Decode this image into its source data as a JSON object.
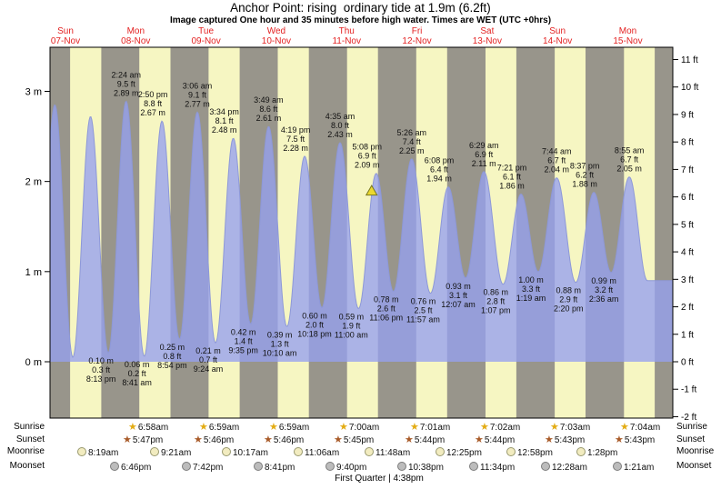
{
  "header": {
    "title": "Anchor Point: rising  ordinary tide at 1.9m (6.2ft)",
    "subtitle": "Image captured One hour and 35 minutes before high water. Times are WET (UTC +0hrs)"
  },
  "chart_data": {
    "type": "area",
    "title": "Anchor Point: rising ordinary tide at 1.9m (6.2ft)",
    "ylabel_left": "m",
    "ylabel_right": "ft",
    "y_axis_m": [
      0,
      1,
      2,
      3
    ],
    "y_axis_ft": [
      -2,
      -1,
      0,
      1,
      2,
      3,
      4,
      5,
      6,
      7,
      8,
      9,
      10,
      11
    ],
    "days": [
      {
        "name": "Sun",
        "date": "07-Nov"
      },
      {
        "name": "Mon",
        "date": "08-Nov"
      },
      {
        "name": "Tue",
        "date": "09-Nov"
      },
      {
        "name": "Wed",
        "date": "10-Nov"
      },
      {
        "name": "Thu",
        "date": "11-Nov"
      },
      {
        "name": "Fri",
        "date": "12-Nov"
      },
      {
        "name": "Sat",
        "date": "13-Nov"
      },
      {
        "name": "Sun",
        "date": "14-Nov"
      },
      {
        "name": "Mon",
        "date": "15-Nov"
      }
    ],
    "highs": [
      {
        "day": 1,
        "time": "2:24 am",
        "height_ft": 9.5,
        "height_m": 2.89
      },
      {
        "day": 1,
        "time": "2:50 pm",
        "height_ft": 8.8,
        "height_m": 2.67
      },
      {
        "day": 2,
        "time": "3:06 am",
        "height_ft": 9.1,
        "height_m": 2.77
      },
      {
        "day": 2,
        "time": "3:34 pm",
        "height_ft": 8.1,
        "height_m": 2.48
      },
      {
        "day": 3,
        "time": "3:49 am",
        "height_ft": 8.6,
        "height_m": 2.61
      },
      {
        "day": 3,
        "time": "4:19 pm",
        "height_ft": 7.5,
        "height_m": 2.28
      },
      {
        "day": 4,
        "time": "4:35 am",
        "height_ft": 8.0,
        "height_m": 2.43
      },
      {
        "day": 4,
        "time": "5:08 pm",
        "height_ft": 6.9,
        "height_m": 2.09
      },
      {
        "day": 5,
        "time": "5:26 am",
        "height_ft": 7.4,
        "height_m": 2.25
      },
      {
        "day": 5,
        "time": "6:08 pm",
        "height_ft": 6.4,
        "height_m": 1.94
      },
      {
        "day": 6,
        "time": "6:29 am",
        "height_ft": 6.9,
        "height_m": 2.11
      },
      {
        "day": 6,
        "time": "7:21 pm",
        "height_ft": 6.1,
        "height_m": 1.86
      },
      {
        "day": 7,
        "time": "7:44 am",
        "height_ft": 6.7,
        "height_m": 2.04
      },
      {
        "day": 7,
        "time": "8:37 pm",
        "height_ft": 6.2,
        "height_m": 1.88
      },
      {
        "day": 8,
        "time": "8:55 am",
        "height_ft": 6.7,
        "height_m": 2.05
      }
    ],
    "lows": [
      {
        "day": 0,
        "time": "8:13 pm",
        "height_ft": 0.3,
        "height_m": 0.1
      },
      {
        "day": 1,
        "time": "8:41 am",
        "height_ft": 0.2,
        "height_m": 0.06
      },
      {
        "day": 1,
        "time": "8:54 pm",
        "height_ft": 0.8,
        "height_m": 0.25
      },
      {
        "day": 2,
        "time": "9:24 am",
        "height_ft": 0.7,
        "height_m": 0.21
      },
      {
        "day": 2,
        "time": "9:35 pm",
        "height_ft": 1.4,
        "height_m": 0.42
      },
      {
        "day": 3,
        "time": "10:10 am",
        "height_ft": 1.3,
        "height_m": 0.39
      },
      {
        "day": 3,
        "time": "10:18 pm",
        "height_ft": 2.0,
        "height_m": 0.6
      },
      {
        "day": 4,
        "time": "11:00 am",
        "height_ft": 1.9,
        "height_m": 0.59
      },
      {
        "day": 4,
        "time": "11:06 pm",
        "height_ft": 2.6,
        "height_m": 0.78
      },
      {
        "day": 5,
        "time": "11:57 am",
        "height_ft": 2.5,
        "height_m": 0.76
      },
      {
        "day": 6,
        "time": "12:07 am",
        "height_ft": 3.1,
        "height_m": 0.93
      },
      {
        "day": 6,
        "time": "1:07 pm",
        "height_ft": 2.8,
        "height_m": 0.86
      },
      {
        "day": 7,
        "time": "1:19 am",
        "height_ft": 3.3,
        "height_m": 1.0
      },
      {
        "day": 7,
        "time": "2:20 pm",
        "height_ft": 2.9,
        "height_m": 0.88
      },
      {
        "day": 8,
        "time": "2:36 am",
        "height_ft": 3.2,
        "height_m": 0.99
      }
    ],
    "edge_extremes_est": [
      {
        "d": -0.2,
        "h": 0.08
      },
      {
        "d": 0.07,
        "h": 2.85
      },
      {
        "d": 0.33,
        "h": 0.05
      },
      {
        "d": 0.585,
        "h": 2.72
      },
      {
        "d": 8.632,
        "h": 0.9
      }
    ],
    "marker": {
      "day": 4,
      "time": "3:33 pm",
      "height_m": 1.9
    },
    "colors": {
      "day_bg": "#f6f6c2",
      "night_bg": "#98958b",
      "tide_fill": "#96a0f0",
      "tide_edge": "#8d98d8",
      "axis": "#000000",
      "day_label": "#e32222",
      "marker_fill": "#ecd92f",
      "marker_edge": "#77771f"
    }
  },
  "astro": {
    "rows": [
      {
        "id": "sunrise",
        "label": "Sunrise",
        "entries": [
          {
            "day": 1,
            "time": "6:58am"
          },
          {
            "day": 2,
            "time": "6:59am"
          },
          {
            "day": 3,
            "time": "6:59am"
          },
          {
            "day": 4,
            "time": "7:00am"
          },
          {
            "day": 5,
            "time": "7:01am"
          },
          {
            "day": 6,
            "time": "7:02am"
          },
          {
            "day": 7,
            "time": "7:03am"
          },
          {
            "day": 8,
            "time": "7:04am"
          }
        ]
      },
      {
        "id": "sunset",
        "label": "Sunset",
        "entries": [
          {
            "day": 1,
            "time": "5:47pm"
          },
          {
            "day": 2,
            "time": "5:46pm"
          },
          {
            "day": 3,
            "time": "5:46pm"
          },
          {
            "day": 4,
            "time": "5:45pm"
          },
          {
            "day": 5,
            "time": "5:44pm"
          },
          {
            "day": 6,
            "time": "5:44pm"
          },
          {
            "day": 7,
            "time": "5:43pm"
          },
          {
            "day": 8,
            "time": "5:43pm"
          }
        ]
      },
      {
        "id": "moonrise",
        "label": "Moonrise",
        "entries": [
          {
            "day": 0,
            "time": "8:19am"
          },
          {
            "day": 1,
            "time": "9:21am"
          },
          {
            "day": 2,
            "time": "10:17am"
          },
          {
            "day": 3,
            "time": "11:06am"
          },
          {
            "day": 4,
            "time": "11:48am"
          },
          {
            "day": 5,
            "time": "12:25pm"
          },
          {
            "day": 6,
            "time": "12:58pm"
          },
          {
            "day": 7,
            "time": "1:28pm"
          }
        ]
      },
      {
        "id": "moonset",
        "label": "Moonset",
        "entries": [
          {
            "day": 0,
            "time": "6:46pm"
          },
          {
            "day": 1,
            "time": "7:42pm"
          },
          {
            "day": 2,
            "time": "8:41pm"
          },
          {
            "day": 3,
            "time": "9:40pm"
          },
          {
            "day": 4,
            "time": "10:38pm"
          },
          {
            "day": 5,
            "time": "11:34pm"
          },
          {
            "day": 7,
            "time": "12:28am"
          },
          {
            "day": 8,
            "time": "1:21am"
          }
        ]
      }
    ],
    "phase": "First Quarter | 4:38pm"
  }
}
